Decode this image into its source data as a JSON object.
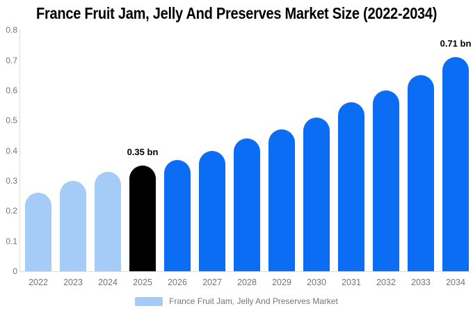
{
  "title": "France Fruit Jam, Jelly And Preserves Market Size (2022-2034)",
  "colors": {
    "historical": "#A5CCF7",
    "forecast": "#0B6CF4",
    "highlight": "#000000",
    "axis_text": "#757575",
    "axis_line": "#DEDEDE",
    "annotation_text": "#000000"
  },
  "legend": {
    "label": "France Fruit Jam, Jelly And Preserves Market"
  },
  "chart_data": {
    "type": "bar",
    "title": "France Fruit Jam, Jelly And Preserves Market Size (2022-2034)",
    "categories": [
      "2022",
      "2023",
      "2024",
      "2025",
      "2026",
      "2027",
      "2028",
      "2029",
      "2030",
      "2031",
      "2032",
      "2033",
      "2034"
    ],
    "values": [
      0.26,
      0.3,
      0.33,
      0.35,
      0.37,
      0.4,
      0.44,
      0.47,
      0.51,
      0.56,
      0.6,
      0.65,
      0.71
    ],
    "unit": "bn",
    "bar_roles": [
      "historical",
      "historical",
      "historical",
      "highlight",
      "forecast",
      "forecast",
      "forecast",
      "forecast",
      "forecast",
      "forecast",
      "forecast",
      "forecast",
      "forecast"
    ],
    "annotations": [
      {
        "category": "2025",
        "text": "0.35 bn"
      },
      {
        "category": "2034",
        "text": "0.71 bn"
      }
    ],
    "xlabel": "",
    "ylabel": "",
    "ylim": [
      0,
      0.8
    ],
    "ytick_labels": [
      "0",
      "0.1",
      "0.2",
      "0.3",
      "0.4",
      "0.5",
      "0.6",
      "0.7",
      "0.8"
    ],
    "grid": false,
    "legend_position": "bottom"
  }
}
